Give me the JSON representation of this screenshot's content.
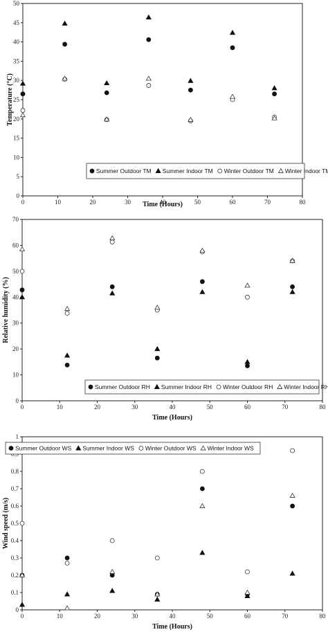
{
  "chart_data": [
    {
      "type": "scatter",
      "xlabel": "Time (Hours)",
      "ylabel": "Temperature (°C)",
      "xlim": [
        0,
        80
      ],
      "ylim": [
        0,
        50
      ],
      "xticks": [
        "0",
        "10",
        "20",
        "30",
        "40",
        "50",
        "60",
        "70",
        "80"
      ],
      "yticks": [
        "0",
        "5",
        "10",
        "15",
        "20",
        "25",
        "30",
        "35",
        "40",
        "45",
        "50"
      ],
      "legend_position": "bottom",
      "series": [
        {
          "name": "Summer Outdoor TM",
          "marker": "filled-circle",
          "x": [
            0,
            12,
            24,
            36,
            48,
            60,
            72
          ],
          "y": [
            26.5,
            39.4,
            26.8,
            40.6,
            27.5,
            38.5,
            26.5
          ]
        },
        {
          "name": "Summer Indoor TM",
          "marker": "filled-triangle",
          "x": [
            0,
            12,
            24,
            36,
            48,
            60,
            72
          ],
          "y": [
            29.2,
            44.8,
            29.3,
            46.4,
            29.9,
            42.4,
            28.0
          ]
        },
        {
          "name": "Winter Outdoor TM",
          "marker": "open-circle",
          "x": [
            0,
            12,
            24,
            36,
            48,
            60,
            72
          ],
          "y": [
            22.2,
            30.3,
            19.8,
            28.7,
            19.5,
            25.0,
            20.5
          ]
        },
        {
          "name": "Winter Indoor TM",
          "marker": "open-triangle",
          "x": [
            0,
            12,
            24,
            36,
            48,
            60,
            72
          ],
          "y": [
            21.0,
            30.5,
            19.9,
            30.5,
            19.8,
            25.8,
            20.2
          ]
        }
      ]
    },
    {
      "type": "scatter",
      "xlabel": "Time (Hours)",
      "ylabel": "Relative humidity (%)",
      "xlim": [
        0,
        80
      ],
      "ylim": [
        0,
        70
      ],
      "xticks": [
        "0",
        "10",
        "20",
        "30",
        "40",
        "50",
        "60",
        "70",
        "80"
      ],
      "yticks": [
        "0",
        "10",
        "20",
        "30",
        "40",
        "50",
        "60",
        "70"
      ],
      "legend_position": "bottom",
      "series": [
        {
          "name": "Summer Outdoor RH",
          "marker": "filled-circle",
          "x": [
            0,
            12,
            24,
            36,
            48,
            60,
            72
          ],
          "y": [
            42.8,
            13.8,
            44.0,
            16.5,
            46.0,
            13.5,
            44.0
          ]
        },
        {
          "name": "Summer Indoor RH",
          "marker": "filled-triangle",
          "x": [
            0,
            12,
            24,
            36,
            48,
            60,
            72
          ],
          "y": [
            40.0,
            17.5,
            41.5,
            20.0,
            42.0,
            15.0,
            42.0
          ]
        },
        {
          "name": "Winter Outdoor RH",
          "marker": "open-circle",
          "x": [
            0,
            12,
            24,
            36,
            48,
            60,
            72
          ],
          "y": [
            50.0,
            33.8,
            61.3,
            35.0,
            57.5,
            40.0,
            54.0
          ]
        },
        {
          "name": "Winter Indoor RH",
          "marker": "open-triangle",
          "x": [
            0,
            12,
            24,
            36,
            48,
            60,
            72
          ],
          "y": [
            58.5,
            35.5,
            62.8,
            36.0,
            58.0,
            44.5,
            54.0
          ]
        }
      ]
    },
    {
      "type": "scatter",
      "xlabel": "Time (Hours)",
      "ylabel": "Wind speed (m/s)",
      "xlim": [
        0,
        80
      ],
      "ylim": [
        0,
        1
      ],
      "xticks": [
        "0",
        "10",
        "20",
        "30",
        "40",
        "50",
        "60",
        "70",
        "80"
      ],
      "yticks": [
        "0",
        "0.1",
        "0.2",
        "0.3",
        "0.4",
        "0.5",
        "0.6",
        "0.7",
        "0.8",
        "0.9",
        "1"
      ],
      "legend_position": "top",
      "series": [
        {
          "name": "Summer Outdoor WS",
          "marker": "filled-circle",
          "x": [
            0,
            12,
            24,
            36,
            48,
            60,
            72
          ],
          "y": [
            0.2,
            0.3,
            0.2,
            0.09,
            0.7,
            0.09,
            0.6
          ]
        },
        {
          "name": "Summer Indoor WS",
          "marker": "filled-triangle",
          "x": [
            0,
            12,
            24,
            36,
            48,
            60,
            72
          ],
          "y": [
            0.03,
            0.09,
            0.11,
            0.06,
            0.33,
            0.08,
            0.21
          ]
        },
        {
          "name": "Winter Outdoor WS",
          "marker": "open-circle",
          "x": [
            0,
            12,
            24,
            36,
            48,
            60,
            72
          ],
          "y": [
            0.5,
            0.27,
            0.4,
            0.3,
            0.8,
            0.22,
            0.92
          ]
        },
        {
          "name": "Winter Indoor WS",
          "marker": "open-triangle",
          "x": [
            0,
            12,
            24,
            36,
            48,
            60,
            72
          ],
          "y": [
            0.2,
            0.01,
            0.22,
            0.09,
            0.6,
            0.1,
            0.66
          ]
        }
      ]
    }
  ]
}
